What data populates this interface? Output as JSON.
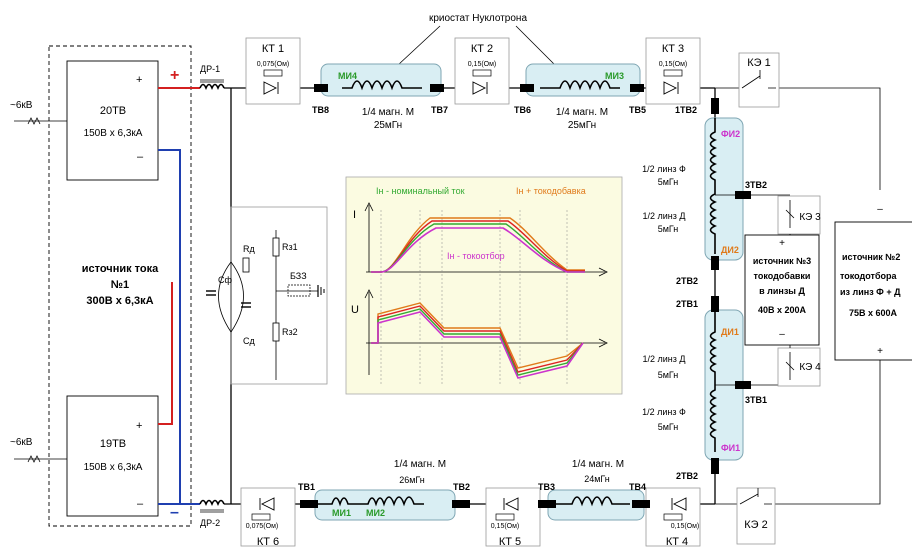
{
  "title": "криостат Нуклотрона",
  "source1": {
    "title": "источник тока",
    "number": "№1",
    "rating": "300В х 6,3кА",
    "unit_top": {
      "name": "20ТВ",
      "rating": "150В х 6,3кА",
      "plus": "+",
      "minus": "–"
    },
    "unit_bottom": {
      "name": "19ТВ",
      "rating": "150В х 6,3кА",
      "plus": "+",
      "minus": "–"
    },
    "supply_top": "~6кВ",
    "supply_bottom": "~6кВ"
  },
  "outer_plus": "+",
  "outer_minus": "–",
  "chokes": {
    "top": "ДР-1",
    "bottom": "ДР-2"
  },
  "protection": {
    "Cf": "Сф",
    "Rd": "Rд",
    "Cd": "Сд",
    "Rz1": "Rз1",
    "Rz2": "Rз2",
    "bzz": "БЗЗ"
  },
  "kt": [
    {
      "name": "КТ 1",
      "value": "0,075(Ом)"
    },
    {
      "name": "КТ 2",
      "value": "0,15(Ом)"
    },
    {
      "name": "КТ 3",
      "value": "0,15(Ом)"
    },
    {
      "name": "КТ 4",
      "value": "0,15(Ом)"
    },
    {
      "name": "КТ 5",
      "value": "0,15(Ом)"
    },
    {
      "name": "КТ 6",
      "value": "0,075(Ом)"
    }
  ],
  "ke": [
    "КЭ 1",
    "КЭ 2",
    "КЭ 3",
    "КЭ 4"
  ],
  "magnets": {
    "top_left": {
      "tag": "МИ4",
      "label": "1/4 магн. М",
      "value": "25мГн"
    },
    "top_right": {
      "tag": "МИ3",
      "label": "1/4 магн. М",
      "value": "25мГн"
    },
    "bottom_left": {
      "tag1": "МИ1",
      "tag2": "МИ2",
      "label": "1/4 магн. М",
      "value": "26мГн"
    },
    "bottom_right": {
      "label": "1/4 магн. М",
      "value": "24мГн"
    }
  },
  "lenses": {
    "fi2": "ФИ2",
    "di2": "ДИ2",
    "di1": "ДИ1",
    "fi1": "ФИ1",
    "l1": {
      "label": "1/2 линз Ф",
      "value": "5мГн"
    },
    "l2": {
      "label": "1/2 линз Д",
      "value": "5мГн"
    },
    "l3": {
      "label": "1/2 линз Д",
      "value": "5мГн"
    },
    "l4": {
      "label": "1/2 линз Ф",
      "value": "5мГн"
    }
  },
  "terminals": [
    "ТВ8",
    "ТВ7",
    "ТВ6",
    "ТВ5",
    "1ТВ2",
    "3ТВ2",
    "2ТВ2",
    "2ТВ1",
    "3ТВ1",
    "2ТВ2",
    "ТВ1",
    "ТВ2",
    "ТВ3",
    "ТВ4"
  ],
  "source3": {
    "plus": "+",
    "line1": "источник №3",
    "line2": "токодобавки",
    "line3": "в линзы  Д",
    "line4": "40В х 200А",
    "minus": "–"
  },
  "source2": {
    "minus": "–",
    "line1": "источник №2",
    "line2": "токодотбора",
    "line3": "из линз Ф + Д",
    "line4": "75В х 600А",
    "plus": "+"
  },
  "graph": {
    "legend_nominal": "Iн - номинальный ток",
    "legend_add": "Iн + токодобавка",
    "legend_sub": "Iн - токоотбор",
    "axis_i": "I",
    "axis_u": "U",
    "colors": {
      "nominal": "#33aa33",
      "add": "#e07a1a",
      "sub": "#cc33cc",
      "red": "#dd2222"
    }
  },
  "colors": {
    "plus_wire": "#d42020",
    "minus_wire": "#1f3fb0",
    "magnet_fill": "#d9eef3",
    "graph_bg": "#fbfbe1"
  }
}
